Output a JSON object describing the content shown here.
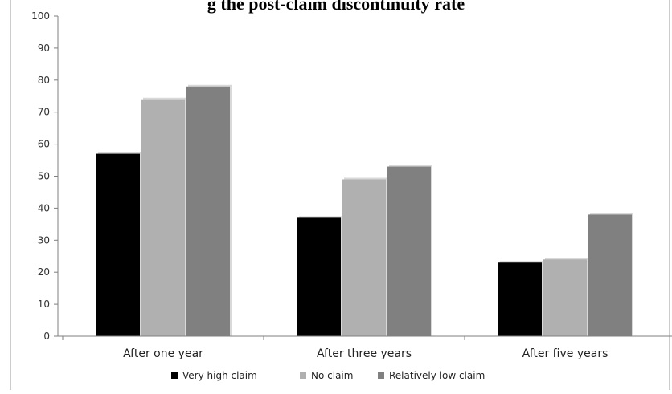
{
  "chart_data": {
    "type": "bar",
    "title": "g the post-claim discontinuity rate",
    "xlabel": "",
    "ylabel": "",
    "categories": [
      "After one year",
      "After three years",
      "After five years"
    ],
    "series": [
      {
        "name": "Very high claim",
        "color": "#000000",
        "values": [
          57,
          37,
          23
        ]
      },
      {
        "name": "No claim",
        "color": "#b0b0b0",
        "values": [
          74,
          49,
          24
        ]
      },
      {
        "name": "Relatively low claim",
        "color": "#808080",
        "values": [
          78,
          53,
          38
        ]
      }
    ],
    "ylim": [
      0,
      100
    ],
    "yticks": [
      0,
      10,
      20,
      30,
      40,
      50,
      60,
      70,
      80,
      90,
      100
    ],
    "grid": false,
    "legend_position": "bottom"
  }
}
